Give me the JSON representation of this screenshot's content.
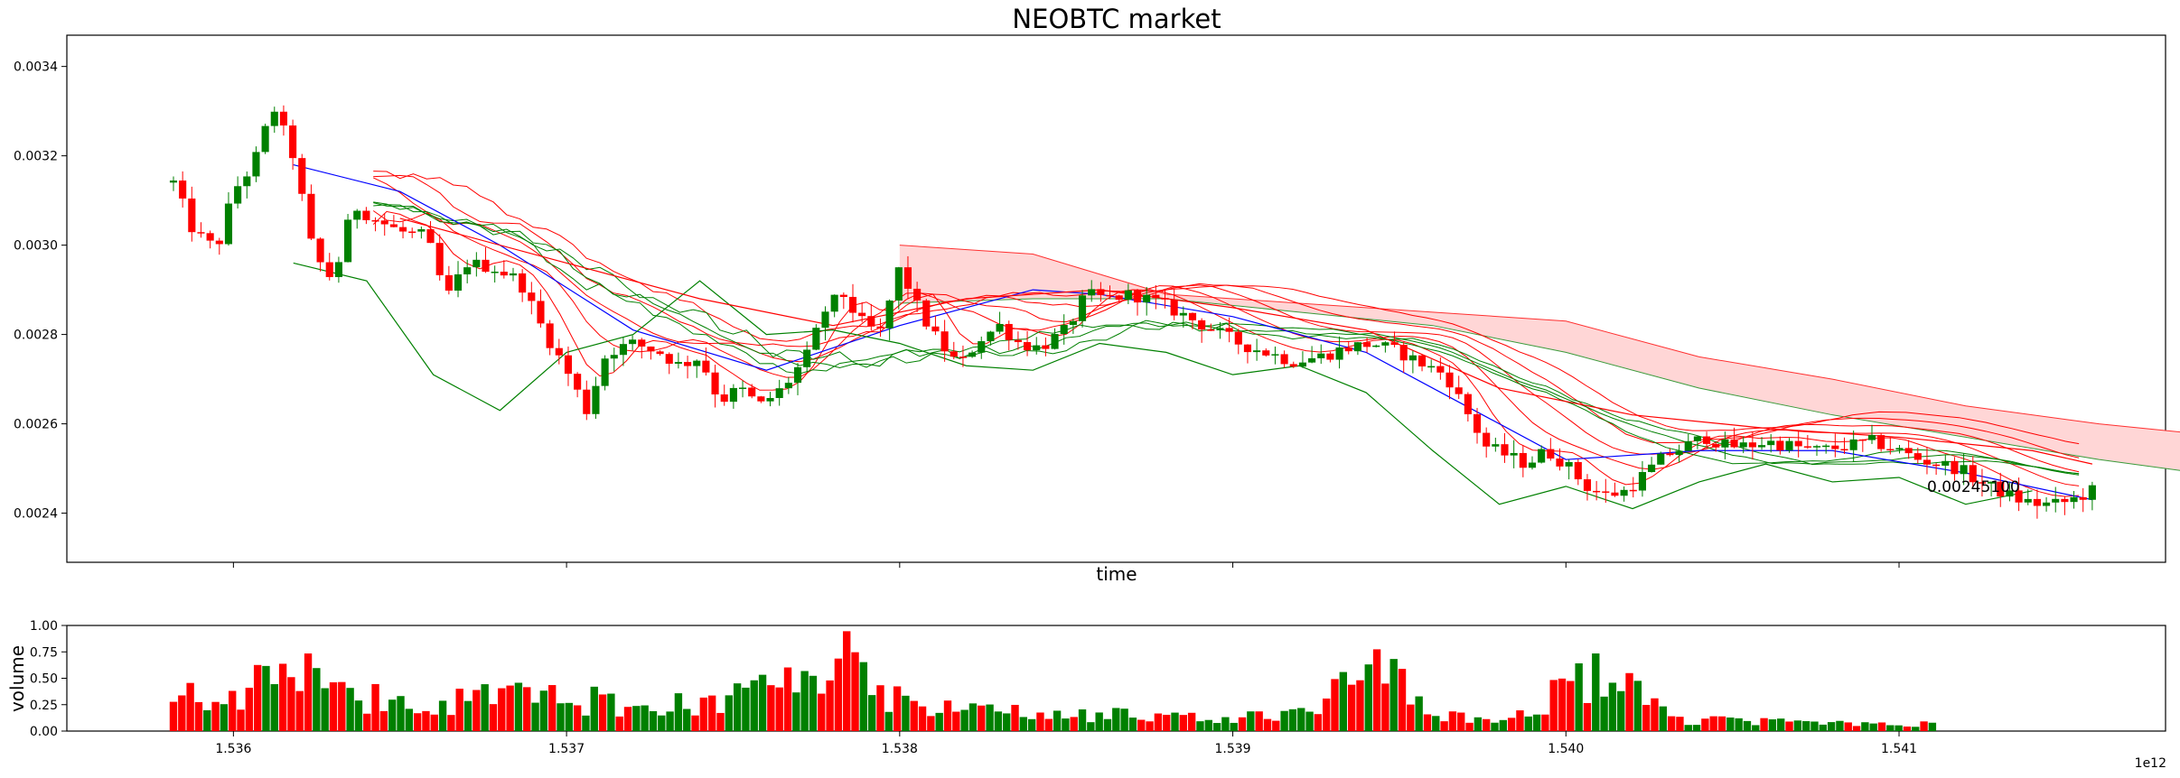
{
  "chart_data": [
    {
      "type": "candlestick",
      "title": "NEOBTC market",
      "xlabel": "time",
      "ylabel": "",
      "x_offset_label": "1e12",
      "x_ticks": [
        1.536,
        1.537,
        1.538,
        1.539,
        1.54,
        1.541
      ],
      "x_tick_labels": [
        "1.536",
        "1.537",
        "1.538",
        "1.539",
        "1.540",
        "1.541"
      ],
      "xlim": [
        1.5355,
        1.5418
      ],
      "ylim": [
        0.00229,
        0.00347
      ],
      "y_ticks": [
        0.0024,
        0.0026,
        0.0028,
        0.003,
        0.0032,
        0.0034
      ],
      "y_tick_labels": [
        "0.0024",
        "0.0026",
        "0.0028",
        "0.0030",
        "0.0032",
        "0.0034"
      ],
      "last_price_label": "0.00245100",
      "candle_colors": {
        "up": "#008000",
        "down": "#ff0000"
      },
      "price_path": [
        [
          1.53582,
          0.00314
        ],
        [
          1.53588,
          0.00303
        ],
        [
          1.53595,
          0.00299
        ],
        [
          1.536,
          0.00312
        ],
        [
          1.53606,
          0.00318
        ],
        [
          1.53612,
          0.00331
        ],
        [
          1.53618,
          0.0032
        ],
        [
          1.53624,
          0.00298
        ],
        [
          1.5363,
          0.00292
        ],
        [
          1.53636,
          0.00309
        ],
        [
          1.53642,
          0.00306
        ],
        [
          1.5365,
          0.00303
        ],
        [
          1.53658,
          0.00302
        ],
        [
          1.53664,
          0.00288
        ],
        [
          1.5367,
          0.00296
        ],
        [
          1.53678,
          0.00295
        ],
        [
          1.53686,
          0.00292
        ],
        [
          1.53693,
          0.00281
        ],
        [
          1.537,
          0.00272
        ],
        [
          1.53706,
          0.00263
        ],
        [
          1.53712,
          0.00276
        ],
        [
          1.5372,
          0.00278
        ],
        [
          1.53728,
          0.00276
        ],
        [
          1.53734,
          0.00273
        ],
        [
          1.5374,
          0.00275
        ],
        [
          1.53746,
          0.00265
        ],
        [
          1.53752,
          0.00268
        ],
        [
          1.53758,
          0.00264
        ],
        [
          1.53765,
          0.00268
        ],
        [
          1.53772,
          0.00275
        ],
        [
          1.53778,
          0.00286
        ],
        [
          1.53783,
          0.00289
        ],
        [
          1.53788,
          0.00283
        ],
        [
          1.53794,
          0.0028
        ],
        [
          1.538,
          0.00295
        ],
        [
          1.53806,
          0.00285
        ],
        [
          1.53812,
          0.00278
        ],
        [
          1.53818,
          0.00273
        ],
        [
          1.53824,
          0.00279
        ],
        [
          1.5383,
          0.00282
        ],
        [
          1.53836,
          0.00278
        ],
        [
          1.53842,
          0.00277
        ],
        [
          1.5385,
          0.00281
        ],
        [
          1.53856,
          0.00289
        ],
        [
          1.53862,
          0.00288
        ],
        [
          1.5387,
          0.00289
        ],
        [
          1.53878,
          0.00287
        ],
        [
          1.53886,
          0.00284
        ],
        [
          1.53894,
          0.00281
        ],
        [
          1.53902,
          0.00278
        ],
        [
          1.5391,
          0.00276
        ],
        [
          1.53918,
          0.00274
        ],
        [
          1.53926,
          0.00275
        ],
        [
          1.53934,
          0.00277
        ],
        [
          1.53942,
          0.00278
        ],
        [
          1.5395,
          0.00276
        ],
        [
          1.53958,
          0.00273
        ],
        [
          1.53964,
          0.00271
        ],
        [
          1.5397,
          0.00263
        ],
        [
          1.53976,
          0.00255
        ],
        [
          1.53982,
          0.00253
        ],
        [
          1.53988,
          0.00251
        ],
        [
          1.53994,
          0.00254
        ],
        [
          1.54,
          0.00251
        ],
        [
          1.54006,
          0.00246
        ],
        [
          1.54012,
          0.00244
        ],
        [
          1.54018,
          0.00245
        ],
        [
          1.54024,
          0.00249
        ],
        [
          1.5403,
          0.00253
        ],
        [
          1.54036,
          0.00255
        ],
        [
          1.54042,
          0.00257
        ],
        [
          1.54048,
          0.00255
        ],
        [
          1.54054,
          0.00255
        ],
        [
          1.5406,
          0.00256
        ],
        [
          1.54068,
          0.00255
        ],
        [
          1.54076,
          0.00254
        ],
        [
          1.54084,
          0.00255
        ],
        [
          1.54092,
          0.00256
        ],
        [
          1.541,
          0.00254
        ],
        [
          1.54106,
          0.00252
        ],
        [
          1.54112,
          0.00251
        ],
        [
          1.54118,
          0.0025
        ],
        [
          1.54124,
          0.00247
        ],
        [
          1.5413,
          0.00245
        ],
        [
          1.54136,
          0.00243
        ],
        [
          1.54142,
          0.00242
        ],
        [
          1.54148,
          0.00242
        ],
        [
          1.54152,
          0.00243
        ],
        [
          1.54158,
          0.00245
        ]
      ],
      "candle_count": 210,
      "lines": [
        {
          "color": "#0000ff",
          "path": [
            [
              1.53618,
              0.00318
            ],
            [
              1.5365,
              0.00312
            ],
            [
              1.5368,
              0.003
            ],
            [
              1.5372,
              0.00281
            ],
            [
              1.5376,
              0.00272
            ],
            [
              1.538,
              0.00282
            ],
            [
              1.5384,
              0.0029
            ],
            [
              1.5386,
              0.00289
            ],
            [
              1.539,
              0.00284
            ],
            [
              1.5394,
              0.00276
            ],
            [
              1.53975,
              0.00262
            ],
            [
              1.54,
              0.00252
            ],
            [
              1.5404,
              0.00254
            ],
            [
              1.5408,
              0.00254
            ],
            [
              1.5412,
              0.00249
            ],
            [
              1.54158,
              0.00243
            ]
          ]
        },
        {
          "color": "#008000",
          "path": [
            [
              1.53618,
              0.00296
            ],
            [
              1.5364,
              0.00292
            ],
            [
              1.5366,
              0.00271
            ],
            [
              1.5368,
              0.00263
            ],
            [
              1.537,
              0.00276
            ],
            [
              1.5372,
              0.0028
            ],
            [
              1.5374,
              0.00292
            ],
            [
              1.5376,
              0.0028
            ],
            [
              1.5378,
              0.00281
            ],
            [
              1.538,
              0.00278
            ],
            [
              1.5382,
              0.00273
            ],
            [
              1.5384,
              0.00272
            ],
            [
              1.5386,
              0.00278
            ],
            [
              1.5388,
              0.00276
            ],
            [
              1.539,
              0.00271
            ],
            [
              1.5392,
              0.00273
            ],
            [
              1.5394,
              0.00267
            ],
            [
              1.5396,
              0.00254
            ],
            [
              1.5398,
              0.00242
            ],
            [
              1.54,
              0.00246
            ],
            [
              1.5402,
              0.00241
            ],
            [
              1.5404,
              0.00247
            ],
            [
              1.5406,
              0.00251
            ],
            [
              1.5408,
              0.00247
            ],
            [
              1.541,
              0.00248
            ],
            [
              1.5412,
              0.00242
            ],
            [
              1.5414,
              0.00245
            ]
          ]
        },
        {
          "color": "#ff0000",
          "path": [
            [
              1.5365,
              0.00306
            ],
            [
              1.537,
              0.00296
            ],
            [
              1.5374,
              0.00288
            ],
            [
              1.5378,
              0.00282
            ],
            [
              1.5382,
              0.00288
            ],
            [
              1.5386,
              0.0029
            ],
            [
              1.539,
              0.00286
            ],
            [
              1.5394,
              0.00281
            ],
            [
              1.5398,
              0.00268
            ],
            [
              1.5402,
              0.00262
            ],
            [
              1.5406,
              0.00259
            ],
            [
              1.541,
              0.00257
            ],
            [
              1.5414,
              0.00254
            ],
            [
              1.54158,
              0.00251
            ]
          ]
        }
      ],
      "cloud": {
        "fill": "#ffd6d6",
        "upper": [
          [
            1.538,
            0.003
          ],
          [
            1.5384,
            0.00298
          ],
          [
            1.5388,
            0.00289
          ],
          [
            1.5392,
            0.00287
          ],
          [
            1.5396,
            0.00285
          ],
          [
            1.54,
            0.00283
          ],
          [
            1.5404,
            0.00275
          ],
          [
            1.5408,
            0.0027
          ],
          [
            1.5412,
            0.00264
          ],
          [
            1.5416,
            0.0026
          ],
          [
            1.542,
            0.00257
          ],
          [
            1.5424,
            0.00252
          ]
        ],
        "lower": [
          [
            1.538,
            0.00287
          ],
          [
            1.5384,
            0.00288
          ],
          [
            1.5388,
            0.00288
          ],
          [
            1.5392,
            0.00285
          ],
          [
            1.5396,
            0.00282
          ],
          [
            1.54,
            0.00276
          ],
          [
            1.5404,
            0.00268
          ],
          [
            1.5408,
            0.00262
          ],
          [
            1.5412,
            0.00257
          ],
          [
            1.5416,
            0.00252
          ],
          [
            1.542,
            0.00248
          ],
          [
            1.5424,
            0.00245
          ]
        ]
      }
    },
    {
      "type": "bar",
      "ylabel": "volume",
      "xlabel": "",
      "ylim": [
        0,
        1.0
      ],
      "y_ticks": [
        0.0,
        0.25,
        0.5,
        0.75,
        1.0
      ],
      "y_tick_labels": [
        "0.00",
        "0.25",
        "0.50",
        "0.75",
        "1.00"
      ],
      "x_ticks": [
        1.536,
        1.537,
        1.538,
        1.539,
        1.54,
        1.541
      ],
      "x_tick_labels": [
        "1.536",
        "1.537",
        "1.538",
        "1.539",
        "1.540",
        "1.541"
      ],
      "xlim": [
        1.5355,
        1.5418
      ],
      "bar_range": [
        1.53582,
        1.5411
      ],
      "volume_profile": [
        [
          0.0,
          0.45
        ],
        [
          0.04,
          0.35
        ],
        [
          0.06,
          0.7
        ],
        [
          0.08,
          0.55
        ],
        [
          0.1,
          0.35
        ],
        [
          0.15,
          0.3
        ],
        [
          0.2,
          0.38
        ],
        [
          0.25,
          0.3
        ],
        [
          0.3,
          0.28
        ],
        [
          0.35,
          0.45
        ],
        [
          0.38,
          0.8
        ],
        [
          0.4,
          0.35
        ],
        [
          0.45,
          0.22
        ],
        [
          0.5,
          0.18
        ],
        [
          0.55,
          0.16
        ],
        [
          0.6,
          0.14
        ],
        [
          0.65,
          0.2
        ],
        [
          0.68,
          0.7
        ],
        [
          0.72,
          0.15
        ],
        [
          0.75,
          0.12
        ],
        [
          0.82,
          0.65
        ],
        [
          0.85,
          0.12
        ],
        [
          0.9,
          0.1
        ],
        [
          0.95,
          0.09
        ],
        [
          1.0,
          0.08
        ]
      ]
    }
  ]
}
